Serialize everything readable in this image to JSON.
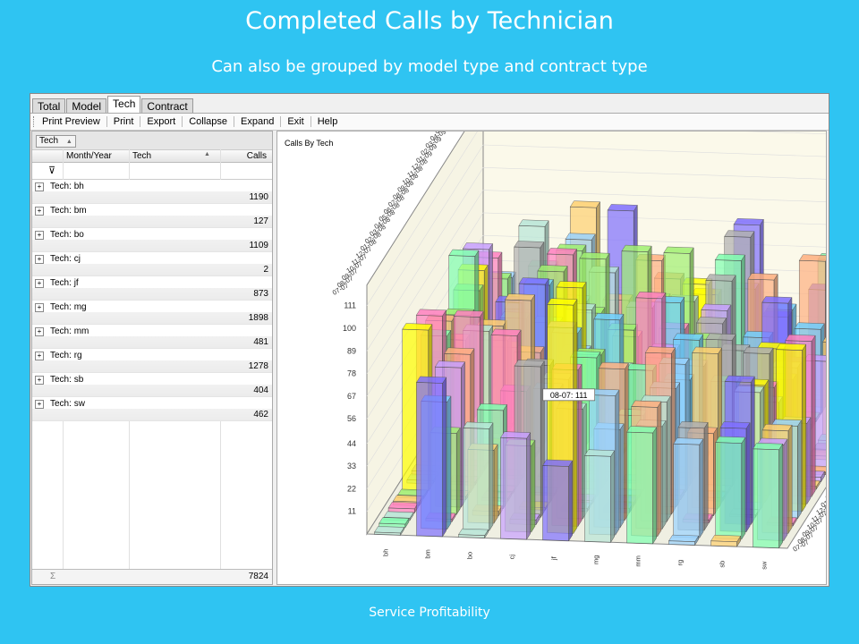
{
  "slide": {
    "title": "Completed Calls by Technician",
    "subtitle": "Can also be grouped by model type and contract type",
    "footer": "Service Profitability"
  },
  "tabs": [
    "Total",
    "Model",
    "Tech",
    "Contract"
  ],
  "active_tab": "Tech",
  "toolbar": [
    "Print Preview",
    "Print",
    "Export",
    "Collapse",
    "Expand",
    "Exit",
    "Help"
  ],
  "grid": {
    "group_by_chip": "Tech",
    "columns": [
      "Month/Year",
      "Tech",
      "Calls"
    ],
    "group_prefix": "Tech:",
    "groups": [
      {
        "tech": "bh",
        "calls": "1190"
      },
      {
        "tech": "bm",
        "calls": "127"
      },
      {
        "tech": "bo",
        "calls": "1109"
      },
      {
        "tech": "cj",
        "calls": "2"
      },
      {
        "tech": "jf",
        "calls": "873"
      },
      {
        "tech": "mg",
        "calls": "1898"
      },
      {
        "tech": "mm",
        "calls": "481"
      },
      {
        "tech": "rg",
        "calls": "1278"
      },
      {
        "tech": "sb",
        "calls": "404"
      },
      {
        "tech": "sw",
        "calls": "462"
      }
    ],
    "total": "7824"
  },
  "chart_data": {
    "type": "bar",
    "title": "Calls By Tech",
    "categories": [
      "bh",
      "bm",
      "bo",
      "cj",
      "jf",
      "mg",
      "mm",
      "rg",
      "sb",
      "sw"
    ],
    "months": [
      "07-07",
      "08-07",
      "09-07",
      "10-07",
      "11-07",
      "12-07",
      "01-08",
      "02-08",
      "03-08",
      "04-08",
      "05-08",
      "06-08",
      "07-08",
      "08-08",
      "09-08",
      "10-08",
      "11-08",
      "12-08",
      "01-09",
      "02-09",
      "03-09",
      "04-09",
      "05-09",
      "06-09",
      "07-09"
    ],
    "yticks": [
      "11",
      "22",
      "33",
      "44",
      "56",
      "67",
      "78",
      "89",
      "100",
      "111"
    ],
    "ylim": [
      0,
      111
    ],
    "tooltip": "08-07: 111",
    "highlight": {
      "tech": "jf",
      "month": "08-07",
      "value": 111
    },
    "colors": [
      "#b8e6d8",
      "#9ad3ff",
      "#7f6fff",
      "#c8a0ff",
      "#ffd070",
      "#a0f070",
      "#ff80c0",
      "#ffff00",
      "#70d0ff",
      "#ffb080",
      "#b0b0b0",
      "#80ffb0"
    ]
  }
}
